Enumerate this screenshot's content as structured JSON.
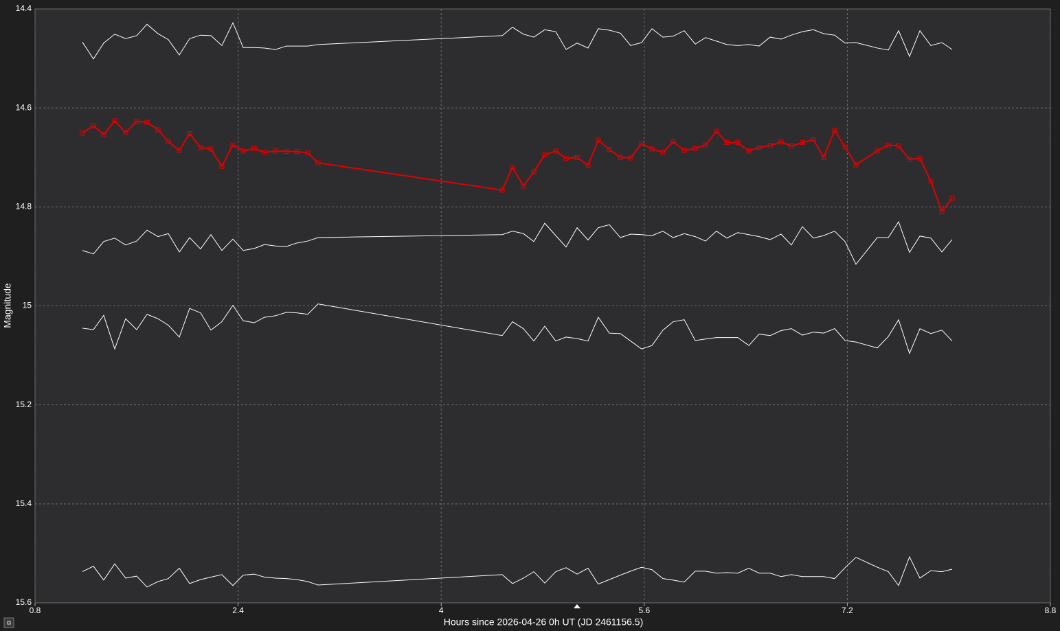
{
  "chart_data": {
    "type": "line",
    "xlabel": "Hours since 2026-04-26 0h UT (JD 2461156.5)",
    "ylabel": "Magnitude",
    "xlim": [
      0.8,
      8.8
    ],
    "xticks": [
      0.8,
      2.4,
      4,
      5.6,
      7.2,
      8.8
    ],
    "ylim": [
      14.4,
      15.6
    ],
    "yticks": [
      14.4,
      14.6,
      14.8,
      15,
      15.2,
      15.4,
      15.6
    ],
    "y_inverted": true,
    "grid": true,
    "x": [
      1.173,
      1.26,
      1.341,
      1.428,
      1.514,
      1.601,
      1.682,
      1.769,
      1.85,
      1.937,
      2.018,
      2.104,
      2.186,
      2.272,
      2.359,
      2.44,
      2.527,
      2.608,
      2.694,
      2.781,
      2.862,
      2.949,
      3.03,
      4.481,
      4.562,
      4.648,
      4.73,
      4.816,
      4.903,
      4.984,
      5.071,
      5.157,
      5.238,
      5.325,
      5.412,
      5.493,
      5.579,
      5.661,
      5.747,
      5.828,
      5.915,
      6.002,
      6.083,
      6.169,
      6.251,
      6.337,
      6.424,
      6.505,
      6.592,
      6.678,
      6.759,
      6.846,
      6.933,
      7.014,
      7.1,
      7.182,
      7.268,
      7.436,
      7.523,
      7.604,
      7.69,
      7.772,
      7.858,
      7.945,
      8.026
    ],
    "series": [
      {
        "color": "#ffffff",
        "values": [
          14.467,
          14.501,
          14.469,
          14.451,
          14.46,
          14.454,
          14.431,
          14.45,
          14.462,
          14.493,
          14.46,
          14.453,
          14.454,
          14.474,
          14.428,
          14.478,
          14.478,
          14.479,
          14.482,
          14.475,
          14.475,
          14.475,
          14.472,
          14.454,
          14.437,
          14.451,
          14.457,
          14.442,
          14.446,
          14.482,
          14.469,
          14.479,
          14.44,
          14.443,
          14.449,
          14.474,
          14.468,
          14.44,
          14.457,
          14.455,
          14.444,
          14.471,
          14.458,
          14.465,
          14.472,
          14.474,
          14.472,
          14.475,
          14.457,
          14.461,
          14.453,
          14.446,
          14.442,
          14.45,
          14.453,
          14.469,
          14.468,
          14.479,
          14.483,
          14.444,
          14.496,
          14.444,
          14.474,
          14.468,
          14.482
        ]
      },
      {
        "color": "#e00000",
        "marker": "square",
        "values": [
          14.651,
          14.636,
          14.654,
          14.626,
          14.65,
          14.627,
          14.629,
          14.644,
          14.668,
          14.686,
          14.652,
          14.68,
          14.683,
          14.718,
          14.675,
          14.687,
          14.682,
          14.69,
          14.687,
          14.688,
          14.688,
          14.691,
          14.711,
          14.766,
          14.72,
          14.758,
          14.729,
          14.695,
          14.687,
          14.702,
          14.7,
          14.716,
          14.665,
          14.684,
          14.7,
          14.701,
          14.672,
          14.683,
          14.69,
          14.668,
          14.686,
          14.682,
          14.675,
          14.647,
          14.67,
          14.67,
          14.687,
          14.68,
          14.676,
          14.669,
          14.677,
          14.67,
          14.664,
          14.7,
          14.645,
          14.679,
          14.715,
          14.687,
          14.675,
          14.677,
          14.704,
          14.702,
          14.748,
          14.809,
          14.783
        ]
      },
      {
        "color": "#ffffff",
        "values": [
          14.888,
          14.895,
          14.87,
          14.863,
          14.877,
          14.869,
          14.847,
          14.86,
          14.854,
          14.891,
          14.862,
          14.885,
          14.856,
          14.888,
          14.865,
          14.888,
          14.884,
          14.876,
          14.879,
          14.88,
          14.873,
          14.869,
          14.862,
          14.856,
          14.849,
          14.854,
          14.87,
          14.833,
          14.858,
          14.881,
          14.842,
          14.867,
          14.842,
          14.836,
          14.862,
          14.855,
          14.856,
          14.858,
          14.849,
          14.862,
          14.854,
          14.86,
          14.869,
          14.849,
          14.863,
          14.852,
          14.856,
          14.86,
          14.866,
          14.855,
          14.877,
          14.84,
          14.863,
          14.858,
          14.849,
          14.87,
          14.916,
          14.862,
          14.862,
          14.83,
          14.892,
          14.859,
          14.863,
          14.891,
          14.866
        ]
      },
      {
        "color": "#ffffff",
        "values": [
          15.045,
          15.048,
          15.019,
          15.087,
          15.026,
          15.048,
          15.017,
          15.026,
          15.039,
          15.063,
          15.005,
          15.014,
          15.049,
          15.032,
          14.999,
          15.03,
          15.034,
          15.023,
          15.02,
          15.013,
          15.014,
          15.017,
          14.996,
          15.06,
          15.032,
          15.046,
          15.071,
          15.041,
          15.071,
          15.063,
          15.066,
          15.071,
          15.023,
          15.055,
          15.056,
          15.071,
          15.087,
          15.08,
          15.049,
          15.032,
          15.028,
          15.07,
          15.067,
          15.064,
          15.064,
          15.064,
          15.08,
          15.057,
          15.06,
          15.05,
          15.046,
          15.059,
          15.053,
          15.055,
          15.046,
          15.07,
          15.073,
          15.085,
          15.062,
          15.028,
          15.096,
          15.046,
          15.056,
          15.049,
          15.071
        ]
      },
      {
        "color": "#ffffff",
        "values": [
          15.537,
          15.526,
          15.554,
          15.521,
          15.55,
          15.546,
          15.568,
          15.557,
          15.551,
          15.53,
          15.561,
          15.553,
          15.548,
          15.543,
          15.565,
          15.544,
          15.542,
          15.548,
          15.55,
          15.551,
          15.553,
          15.557,
          15.564,
          15.543,
          15.561,
          15.55,
          15.537,
          15.56,
          15.537,
          15.529,
          15.542,
          15.53,
          15.562,
          15.553,
          15.544,
          15.536,
          15.528,
          15.533,
          15.551,
          15.554,
          15.558,
          15.536,
          15.536,
          15.54,
          15.539,
          15.54,
          15.53,
          15.54,
          15.54,
          15.547,
          15.543,
          15.547,
          15.547,
          15.547,
          15.551,
          15.529,
          15.508,
          15.528,
          15.537,
          15.565,
          15.507,
          15.55,
          15.535,
          15.537,
          15.532
        ]
      }
    ]
  }
}
